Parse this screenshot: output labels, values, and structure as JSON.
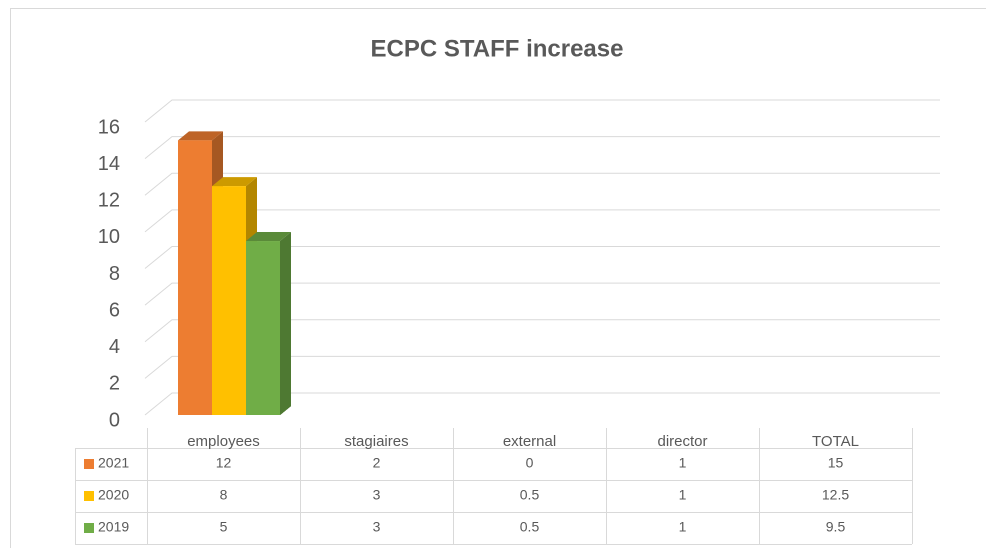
{
  "chart_data": {
    "type": "bar3d",
    "title": "ECPC STAFF increase",
    "categories": [
      "employees",
      "stagiaires",
      "external",
      "director",
      "TOTAL"
    ],
    "series": [
      {
        "name": "2021",
        "color": "#ED7D31",
        "values": [
          12,
          2,
          0,
          1,
          15
        ]
      },
      {
        "name": "2020",
        "color": "#FFC000",
        "values": [
          8,
          3,
          0.5,
          1,
          12.5
        ]
      },
      {
        "name": "2019",
        "color": "#70AD47",
        "values": [
          5,
          3,
          0.5,
          1,
          9.5
        ]
      }
    ],
    "ylim": [
      0,
      16
    ],
    "yticks": [
      0,
      2,
      4,
      6,
      8,
      10,
      12,
      14,
      16
    ],
    "grid": true,
    "data_table": true
  }
}
